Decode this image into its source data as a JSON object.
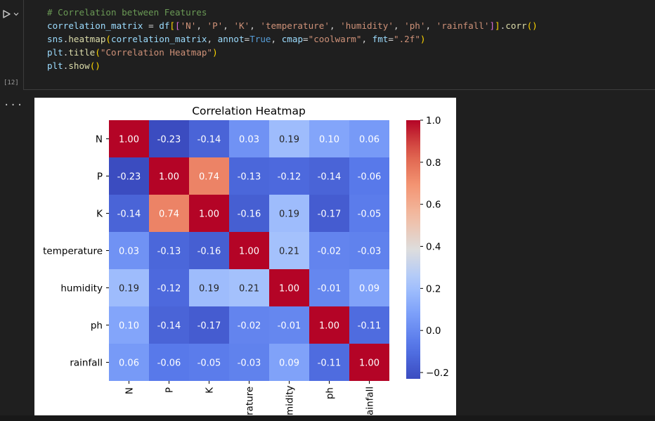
{
  "cell": {
    "execution_count": "[12]",
    "output_marker": "...",
    "code_lines": [
      [
        {
          "t": "# Correlation between Features",
          "c": "c-comment"
        }
      ],
      [
        {
          "t": "correlation_matrix",
          "c": "c-var"
        },
        {
          "t": " = ",
          "c": "c-op"
        },
        {
          "t": "df",
          "c": "c-var"
        },
        {
          "t": "[",
          "c": "c-p1"
        },
        {
          "t": "[",
          "c": "c-p2"
        },
        {
          "t": "'N'",
          "c": "c-str"
        },
        {
          "t": ", ",
          "c": "c-op"
        },
        {
          "t": "'P'",
          "c": "c-str"
        },
        {
          "t": ", ",
          "c": "c-op"
        },
        {
          "t": "'K'",
          "c": "c-str"
        },
        {
          "t": ", ",
          "c": "c-op"
        },
        {
          "t": "'temperature'",
          "c": "c-str"
        },
        {
          "t": ", ",
          "c": "c-op"
        },
        {
          "t": "'humidity'",
          "c": "c-str"
        },
        {
          "t": ", ",
          "c": "c-op"
        },
        {
          "t": "'ph'",
          "c": "c-str"
        },
        {
          "t": ", ",
          "c": "c-op"
        },
        {
          "t": "'rainfall'",
          "c": "c-str"
        },
        {
          "t": "]",
          "c": "c-p2"
        },
        {
          "t": "]",
          "c": "c-p1"
        },
        {
          "t": ".",
          "c": "c-op"
        },
        {
          "t": "corr",
          "c": "c-fn"
        },
        {
          "t": "()",
          "c": "c-p1"
        }
      ],
      [
        {
          "t": "sns",
          "c": "c-var"
        },
        {
          "t": ".",
          "c": "c-op"
        },
        {
          "t": "heatmap",
          "c": "c-fn"
        },
        {
          "t": "(",
          "c": "c-p1"
        },
        {
          "t": "correlation_matrix",
          "c": "c-var"
        },
        {
          "t": ", ",
          "c": "c-op"
        },
        {
          "t": "annot",
          "c": "c-var"
        },
        {
          "t": "=",
          "c": "c-op"
        },
        {
          "t": "True",
          "c": "c-kw"
        },
        {
          "t": ", ",
          "c": "c-op"
        },
        {
          "t": "cmap",
          "c": "c-var"
        },
        {
          "t": "=",
          "c": "c-op"
        },
        {
          "t": "\"coolwarm\"",
          "c": "c-str"
        },
        {
          "t": ", ",
          "c": "c-op"
        },
        {
          "t": "fmt",
          "c": "c-var"
        },
        {
          "t": "=",
          "c": "c-op"
        },
        {
          "t": "\".2f\"",
          "c": "c-str"
        },
        {
          "t": ")",
          "c": "c-p1"
        }
      ],
      [
        {
          "t": "plt",
          "c": "c-var"
        },
        {
          "t": ".",
          "c": "c-op"
        },
        {
          "t": "title",
          "c": "c-fn"
        },
        {
          "t": "(",
          "c": "c-p1"
        },
        {
          "t": "\"Correlation Heatmap\"",
          "c": "c-str"
        },
        {
          "t": ")",
          "c": "c-p1"
        }
      ],
      [
        {
          "t": "plt",
          "c": "c-var"
        },
        {
          "t": ".",
          "c": "c-op"
        },
        {
          "t": "show",
          "c": "c-fn"
        },
        {
          "t": "()",
          "c": "c-p1"
        }
      ]
    ]
  },
  "chart_data": {
    "type": "heatmap",
    "title": "Correlation Heatmap",
    "rows": [
      "N",
      "P",
      "K",
      "temperature",
      "humidity",
      "ph",
      "rainfall"
    ],
    "columns": [
      "N",
      "P",
      "K",
      "temperature",
      "humidity",
      "ph",
      "rainfall"
    ],
    "visible_column_tick_labels": [
      "N",
      "P",
      "K",
      "rature",
      "midity",
      "ph",
      "ainfall"
    ],
    "values": [
      [
        1.0,
        -0.23,
        -0.14,
        0.03,
        0.19,
        0.1,
        0.06
      ],
      [
        -0.23,
        1.0,
        0.74,
        -0.13,
        -0.12,
        -0.14,
        -0.06
      ],
      [
        -0.14,
        0.74,
        1.0,
        -0.16,
        0.19,
        -0.17,
        -0.05
      ],
      [
        0.03,
        -0.13,
        -0.16,
        1.0,
        0.21,
        -0.02,
        -0.03
      ],
      [
        0.19,
        -0.12,
        0.19,
        0.21,
        1.0,
        -0.01,
        0.09
      ],
      [
        0.1,
        -0.14,
        -0.17,
        -0.02,
        -0.01,
        1.0,
        -0.11
      ],
      [
        0.06,
        -0.06,
        -0.05,
        -0.03,
        0.09,
        -0.11,
        1.0
      ]
    ],
    "annot_format": ".2f",
    "cmap": "coolwarm",
    "colorbar": {
      "vmin": -0.23,
      "vmax": 1.0,
      "ticks": [
        -0.2,
        0.0,
        0.2,
        0.4,
        0.6,
        0.8,
        1.0
      ],
      "tick_labels": [
        "−0.2",
        "0.0",
        "0.2",
        "0.4",
        "0.6",
        "0.8",
        "1.0"
      ]
    }
  }
}
